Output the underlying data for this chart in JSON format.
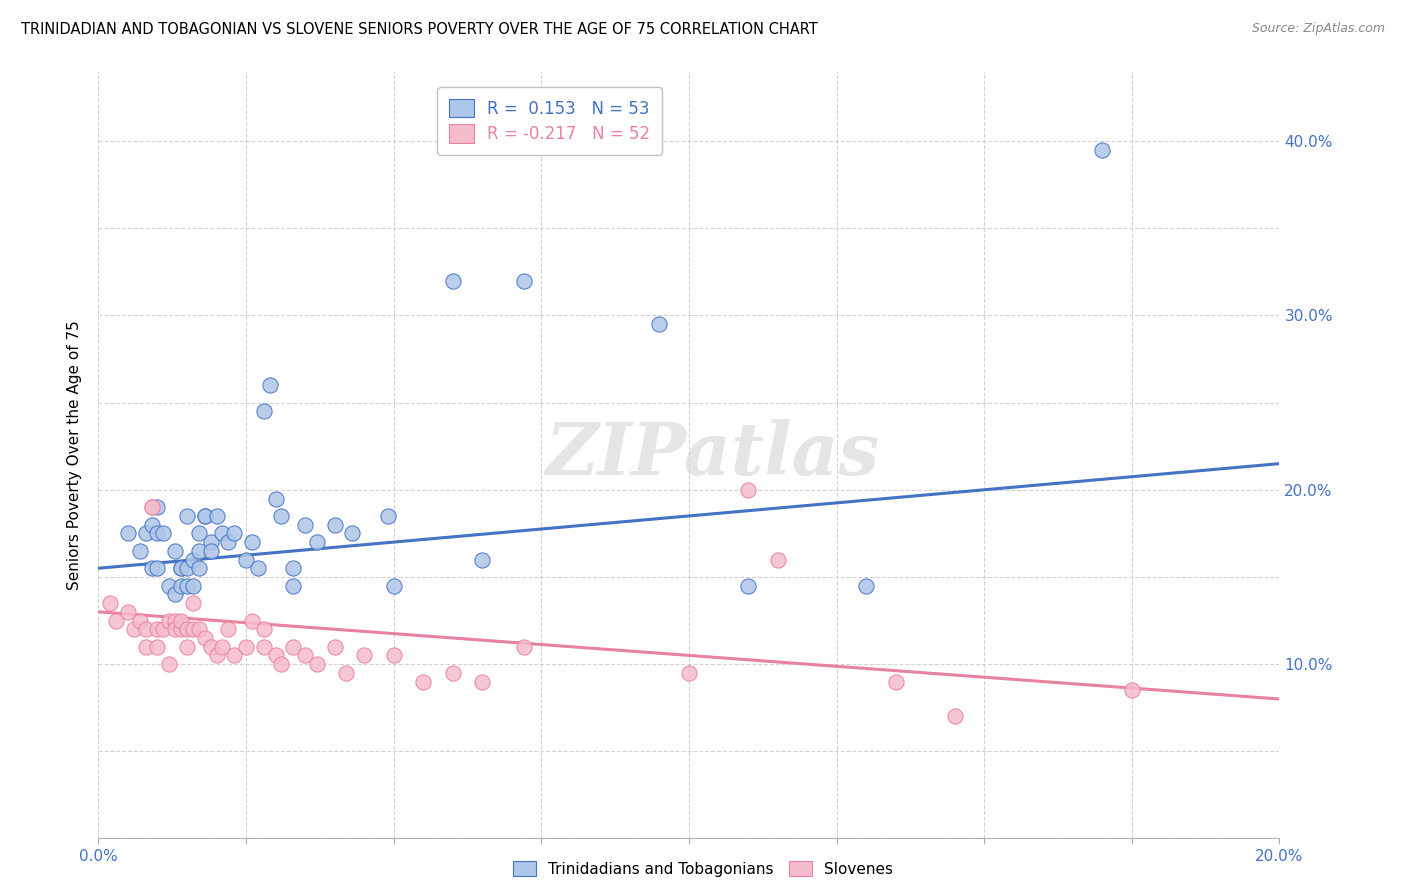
{
  "title": "TRINIDADIAN AND TOBAGONIAN VS SLOVENE SENIORS POVERTY OVER THE AGE OF 75 CORRELATION CHART",
  "source": "Source: ZipAtlas.com",
  "ylabel": "Seniors Poverty Over the Age of 75",
  "xlim": [
    0.0,
    0.2
  ],
  "ylim": [
    0.0,
    0.44
  ],
  "xticks": [
    0.0,
    0.025,
    0.05,
    0.075,
    0.1,
    0.125,
    0.15,
    0.175,
    0.2
  ],
  "yticks": [
    0.0,
    0.05,
    0.1,
    0.15,
    0.2,
    0.25,
    0.3,
    0.35,
    0.4
  ],
  "r_blue": 0.153,
  "n_blue": 53,
  "r_pink": -0.217,
  "n_pink": 52,
  "blue_fill": "#aec6e8",
  "pink_fill": "#f5bccb",
  "blue_edge": "#4472c4",
  "pink_edge": "#e9829f",
  "blue_line": "#4472c4",
  "pink_line": "#e9829f",
  "legend_label_blue": "Trinidadians and Tobagonians",
  "legend_label_pink": "Slovenes",
  "watermark": "ZIPatlas",
  "blue_scatter": [
    [
      0.005,
      0.175
    ],
    [
      0.007,
      0.165
    ],
    [
      0.008,
      0.175
    ],
    [
      0.009,
      0.155
    ],
    [
      0.009,
      0.18
    ],
    [
      0.01,
      0.19
    ],
    [
      0.01,
      0.155
    ],
    [
      0.01,
      0.175
    ],
    [
      0.011,
      0.175
    ],
    [
      0.012,
      0.145
    ],
    [
      0.013,
      0.165
    ],
    [
      0.013,
      0.14
    ],
    [
      0.014,
      0.155
    ],
    [
      0.014,
      0.155
    ],
    [
      0.014,
      0.145
    ],
    [
      0.015,
      0.145
    ],
    [
      0.015,
      0.155
    ],
    [
      0.015,
      0.185
    ],
    [
      0.016,
      0.16
    ],
    [
      0.016,
      0.145
    ],
    [
      0.017,
      0.155
    ],
    [
      0.017,
      0.165
    ],
    [
      0.017,
      0.175
    ],
    [
      0.018,
      0.185
    ],
    [
      0.018,
      0.185
    ],
    [
      0.019,
      0.17
    ],
    [
      0.019,
      0.165
    ],
    [
      0.02,
      0.185
    ],
    [
      0.021,
      0.175
    ],
    [
      0.022,
      0.17
    ],
    [
      0.023,
      0.175
    ],
    [
      0.025,
      0.16
    ],
    [
      0.026,
      0.17
    ],
    [
      0.027,
      0.155
    ],
    [
      0.028,
      0.245
    ],
    [
      0.029,
      0.26
    ],
    [
      0.03,
      0.195
    ],
    [
      0.031,
      0.185
    ],
    [
      0.033,
      0.155
    ],
    [
      0.033,
      0.145
    ],
    [
      0.035,
      0.18
    ],
    [
      0.037,
      0.17
    ],
    [
      0.04,
      0.18
    ],
    [
      0.043,
      0.175
    ],
    [
      0.049,
      0.185
    ],
    [
      0.05,
      0.145
    ],
    [
      0.06,
      0.32
    ],
    [
      0.065,
      0.16
    ],
    [
      0.072,
      0.32
    ],
    [
      0.095,
      0.295
    ],
    [
      0.11,
      0.145
    ],
    [
      0.13,
      0.145
    ],
    [
      0.17,
      0.395
    ]
  ],
  "pink_scatter": [
    [
      0.002,
      0.135
    ],
    [
      0.003,
      0.125
    ],
    [
      0.005,
      0.13
    ],
    [
      0.006,
      0.12
    ],
    [
      0.007,
      0.125
    ],
    [
      0.008,
      0.12
    ],
    [
      0.008,
      0.11
    ],
    [
      0.009,
      0.19
    ],
    [
      0.009,
      0.19
    ],
    [
      0.01,
      0.12
    ],
    [
      0.01,
      0.11
    ],
    [
      0.011,
      0.12
    ],
    [
      0.012,
      0.1
    ],
    [
      0.012,
      0.125
    ],
    [
      0.013,
      0.125
    ],
    [
      0.013,
      0.12
    ],
    [
      0.014,
      0.12
    ],
    [
      0.014,
      0.125
    ],
    [
      0.015,
      0.11
    ],
    [
      0.015,
      0.12
    ],
    [
      0.016,
      0.135
    ],
    [
      0.016,
      0.12
    ],
    [
      0.017,
      0.12
    ],
    [
      0.018,
      0.115
    ],
    [
      0.019,
      0.11
    ],
    [
      0.02,
      0.105
    ],
    [
      0.021,
      0.11
    ],
    [
      0.022,
      0.12
    ],
    [
      0.023,
      0.105
    ],
    [
      0.025,
      0.11
    ],
    [
      0.026,
      0.125
    ],
    [
      0.028,
      0.12
    ],
    [
      0.028,
      0.11
    ],
    [
      0.03,
      0.105
    ],
    [
      0.031,
      0.1
    ],
    [
      0.033,
      0.11
    ],
    [
      0.035,
      0.105
    ],
    [
      0.037,
      0.1
    ],
    [
      0.04,
      0.11
    ],
    [
      0.042,
      0.095
    ],
    [
      0.045,
      0.105
    ],
    [
      0.05,
      0.105
    ],
    [
      0.055,
      0.09
    ],
    [
      0.06,
      0.095
    ],
    [
      0.065,
      0.09
    ],
    [
      0.072,
      0.11
    ],
    [
      0.1,
      0.095
    ],
    [
      0.11,
      0.2
    ],
    [
      0.115,
      0.16
    ],
    [
      0.135,
      0.09
    ],
    [
      0.145,
      0.07
    ],
    [
      0.175,
      0.085
    ]
  ],
  "blue_line_x": [
    0.0,
    0.2
  ],
  "blue_line_y": [
    0.155,
    0.215
  ],
  "pink_line_x": [
    0.0,
    0.2
  ],
  "pink_line_y": [
    0.13,
    0.08
  ]
}
